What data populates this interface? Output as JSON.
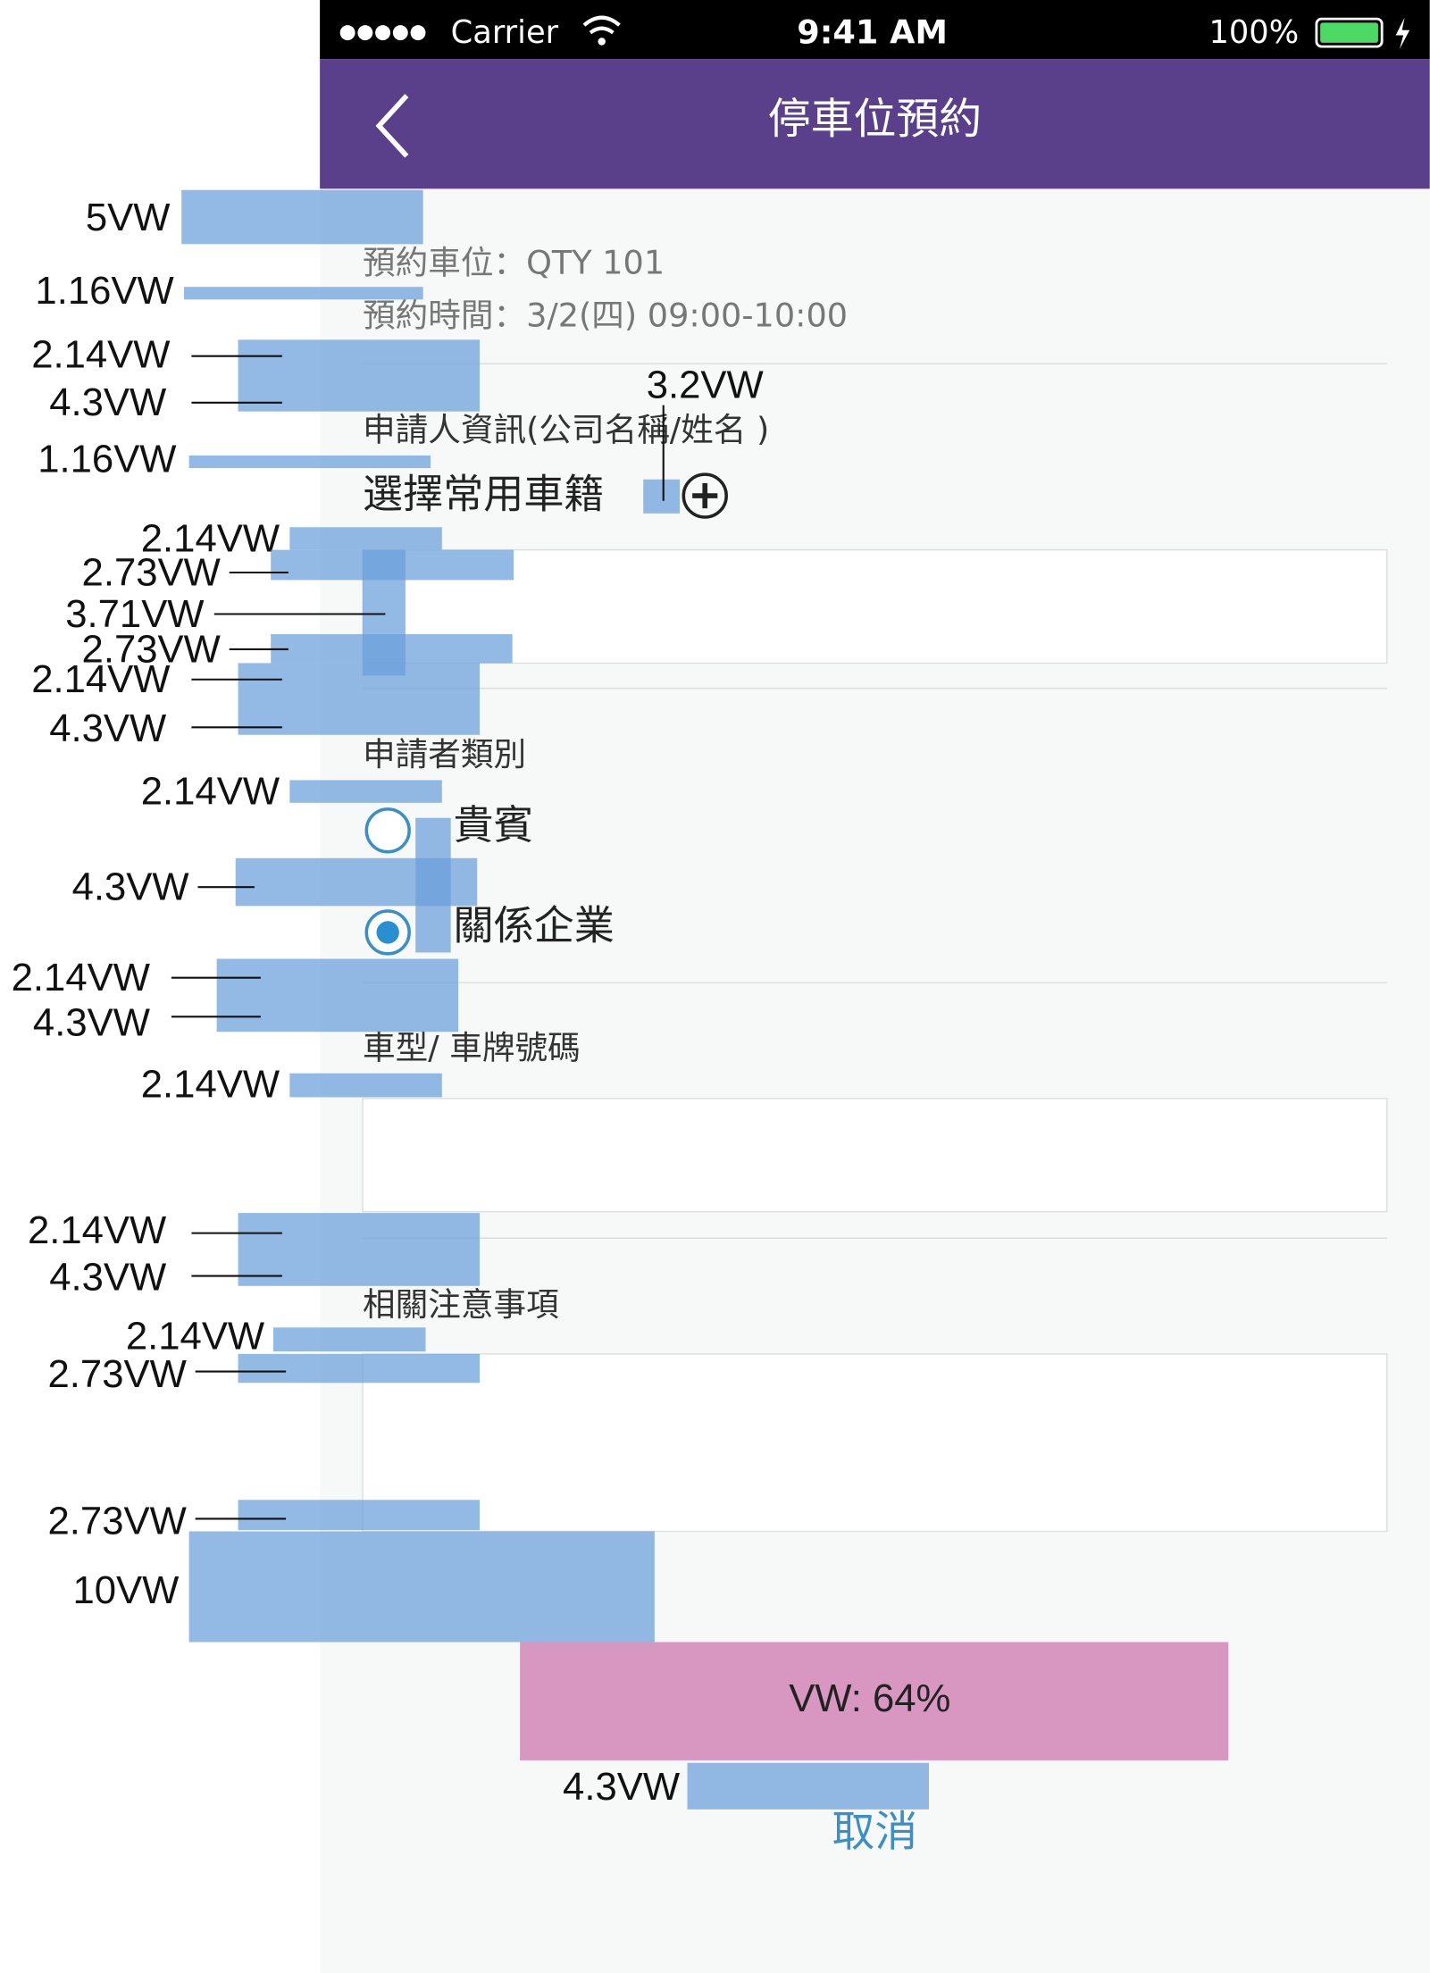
{
  "status_bar": {
    "carrier": "Carrier",
    "time": "9:41 AM",
    "battery": "100%"
  },
  "nav": {
    "title": "停車位預約"
  },
  "reservation": {
    "spot": "預約車位：QTY  101",
    "time": "預約時間：3/2(四)  09:00-10:00"
  },
  "applicant": {
    "label": "申請人資訊(公司名稱/姓名 )",
    "select": "選擇常用車籍"
  },
  "category": {
    "label": "申請者類別",
    "options": [
      "貴賓",
      "關係企業"
    ]
  },
  "vehicle": {
    "label": "車型/ 車牌號碼"
  },
  "notes": {
    "label": "相關注意事項"
  },
  "submit": {
    "label": "VW: 64%"
  },
  "cancel": {
    "label": "取消"
  },
  "annotations": [
    "5VW",
    "1.16VW",
    "2.14VW",
    "4.3VW",
    "1.16VW",
    "3.2VW",
    "2.14VW",
    "2.73VW",
    "3.71VW",
    "2.73VW",
    "2.14VW",
    "4.3VW",
    "2.14VW",
    "4.3VW",
    "2.14VW",
    "4.3VW",
    "2.14VW",
    "2.14VW",
    "4.3VW",
    "2.14VW",
    "2.73VW",
    "2.73VW",
    "10VW",
    "4.3VW"
  ]
}
